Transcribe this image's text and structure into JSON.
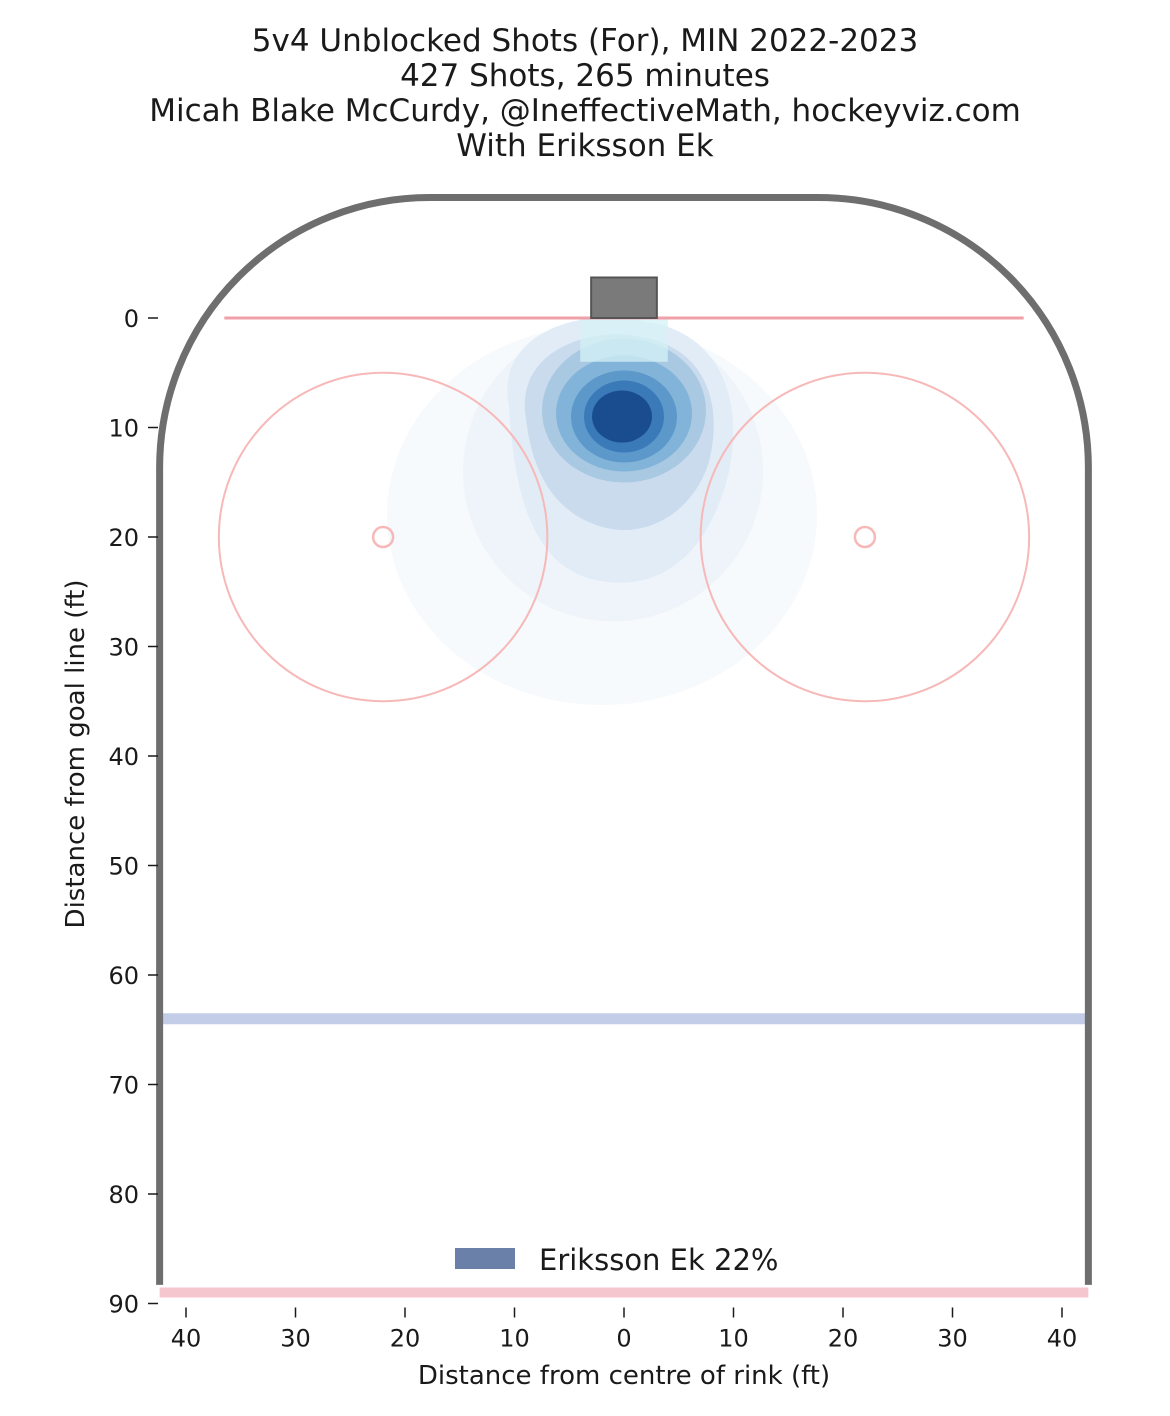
{
  "title": {
    "line1": "5v4 Unblocked Shots (For), MIN 2022-2023",
    "line2": "427 Shots, 265 minutes",
    "line3": "Micah Blake McCurdy, @IneffectiveMath, hockeyviz.com",
    "line4": "With Eriksson Ek"
  },
  "chart_data": {
    "type": "heatmap",
    "xlabel": "Distance from centre of rink (ft)",
    "ylabel": "Distance from goal line (ft)",
    "xlim": [
      -42.5,
      42.5
    ],
    "ylim": [
      -11,
      90
    ],
    "y_inverted": true,
    "xticks": [
      -40,
      -30,
      -20,
      -10,
      0,
      10,
      20,
      30,
      40
    ],
    "xtick_labels": [
      "40",
      "30",
      "20",
      "10",
      "0",
      "10",
      "20",
      "30",
      "40"
    ],
    "yticks": [
      0,
      10,
      20,
      30,
      40,
      50,
      60,
      70,
      80,
      90
    ],
    "ytick_labels": [
      "0",
      "10",
      "20",
      "30",
      "40",
      "50",
      "60",
      "70",
      "80",
      "90"
    ],
    "legend": {
      "label": "Eriksson Ek 22%",
      "color": "#6b80a8",
      "placement": "bottom-center"
    },
    "density_peak": {
      "x": 0,
      "y": 9
    },
    "faceoff_circles": [
      {
        "x": -22,
        "y": 20,
        "r": 15
      },
      {
        "x": 22,
        "y": 20,
        "r": 15
      }
    ],
    "goal_line_y": 0,
    "blue_line_y": 64,
    "centre_line_y": 89,
    "colors": {
      "boards": "#6e6e6e",
      "goal_line": "#f0a0a8",
      "faceoff": "#f7b8b8",
      "blue_line": "#c4cde8",
      "centre_line": "#f6c6ce",
      "net": "#7a7a7a"
    }
  }
}
